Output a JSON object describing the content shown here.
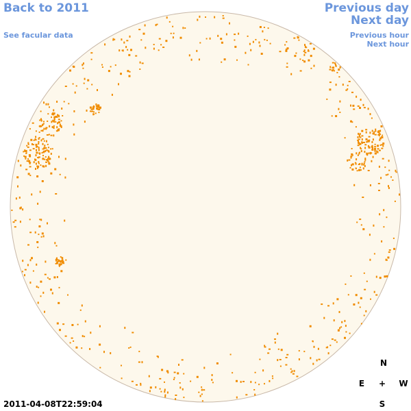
{
  "nav": {
    "back_label": "Back to 2011",
    "facular_label": "See facular data",
    "prev_day_label": "Previous day",
    "next_day_label": "Next day",
    "prev_hour_label": "Previous hour",
    "next_hour_label": "Next hour"
  },
  "compass": {
    "north": "N",
    "south": "S",
    "east": "E",
    "west": "W",
    "center": "+"
  },
  "timestamp": "2011-04-08T22:59:04",
  "colors": {
    "link": "#6b96dc",
    "disk_fill": "#fdf8ec",
    "disk_outline": "#c8b8a8",
    "spot": "#f08c00"
  }
}
